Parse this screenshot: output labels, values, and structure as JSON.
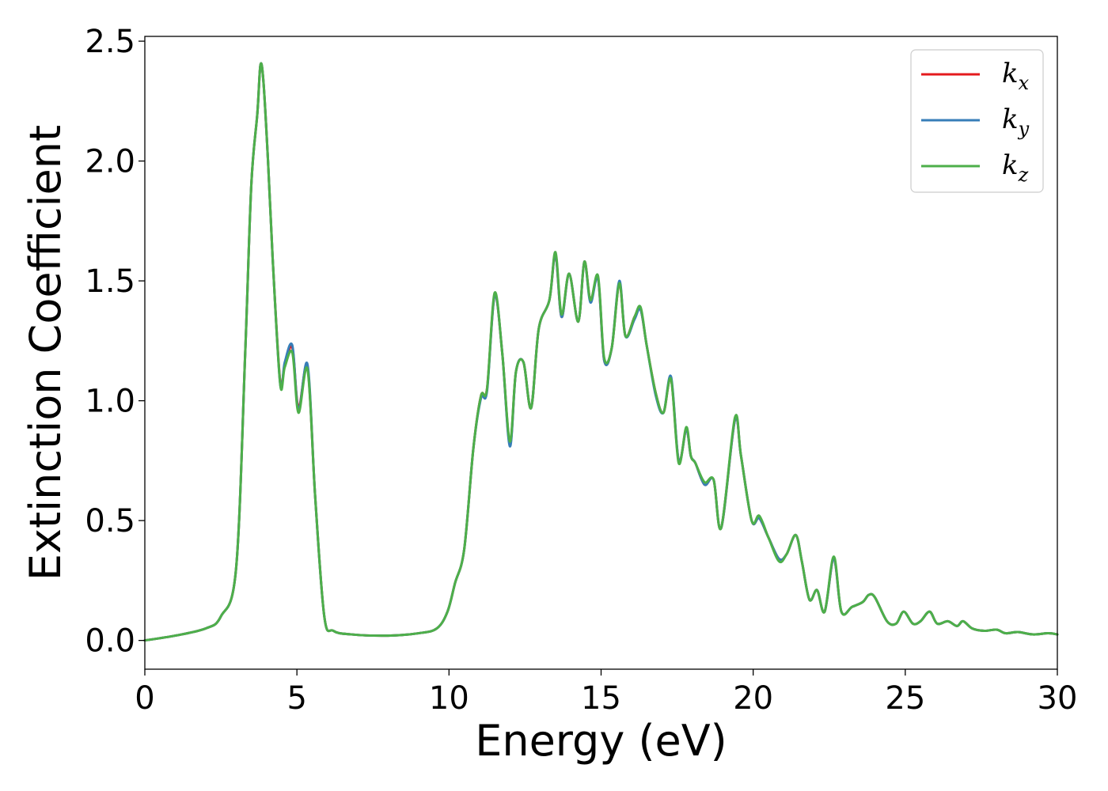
{
  "chart_data": {
    "type": "line",
    "title": "",
    "xlabel": "Energy (eV)",
    "ylabel": "Extinction Coefficient",
    "xlim": [
      0,
      30
    ],
    "ylim": [
      -0.12,
      2.52
    ],
    "xticks": [
      "0",
      "5",
      "10",
      "15",
      "20",
      "25",
      "30"
    ],
    "yticks": [
      "0.0",
      "0.5",
      "1.0",
      "1.5",
      "2.0",
      "2.5"
    ],
    "grid": false,
    "legend_position": "top-right",
    "series": [
      {
        "name": "k_x",
        "legend_main": "k",
        "legend_sub": "x",
        "color": "#e41a1c",
        "x": [
          0,
          1,
          2,
          2.5,
          3,
          3.3,
          3.5,
          3.7,
          3.8,
          3.9,
          4.05,
          4.2,
          4.45,
          4.6,
          4.85,
          5.05,
          5.35,
          5.6,
          5.9,
          6.2,
          6.8,
          8,
          9,
          9.6,
          9.95,
          10.2,
          10.5,
          10.8,
          11.05,
          11.25,
          11.5,
          11.75,
          12.0,
          12.2,
          12.45,
          12.7,
          12.95,
          13.3,
          13.5,
          13.7,
          13.95,
          14.25,
          14.45,
          14.65,
          14.9,
          15.1,
          15.35,
          15.6,
          15.8,
          16.1,
          16.3,
          16.5,
          16.8,
          17.05,
          17.3,
          17.55,
          17.8,
          17.95,
          18.1,
          18.4,
          18.7,
          18.95,
          19.4,
          19.6,
          19.95,
          20.2,
          20.5,
          20.85,
          21.1,
          21.4,
          21.6,
          21.85,
          22.1,
          22.35,
          22.65,
          22.9,
          23.25,
          23.6,
          23.8,
          24.0,
          24.4,
          24.7,
          24.95,
          25.25,
          25.5,
          25.8,
          26.05,
          26.4,
          26.7,
          26.9,
          27.2,
          27.6,
          28.0,
          28.3,
          28.7,
          29.2,
          29.7,
          30
        ],
        "y": [
          0.0,
          0.02,
          0.05,
          0.1,
          0.3,
          1.2,
          1.9,
          2.2,
          2.4,
          2.33,
          2.0,
          1.6,
          1.08,
          1.15,
          1.22,
          0.97,
          1.14,
          0.6,
          0.1,
          0.04,
          0.025,
          0.02,
          0.03,
          0.05,
          0.12,
          0.24,
          0.38,
          0.8,
          1.02,
          1.05,
          1.44,
          1.2,
          0.82,
          1.12,
          1.16,
          0.97,
          1.3,
          1.42,
          1.61,
          1.35,
          1.53,
          1.33,
          1.58,
          1.42,
          1.51,
          1.17,
          1.22,
          1.49,
          1.27,
          1.35,
          1.38,
          1.23,
          1.03,
          0.95,
          1.09,
          0.75,
          0.88,
          0.77,
          0.74,
          0.65,
          0.67,
          0.47,
          0.92,
          0.77,
          0.5,
          0.51,
          0.43,
          0.34,
          0.36,
          0.44,
          0.33,
          0.17,
          0.21,
          0.12,
          0.34,
          0.12,
          0.14,
          0.16,
          0.19,
          0.18,
          0.08,
          0.07,
          0.12,
          0.07,
          0.08,
          0.12,
          0.07,
          0.08,
          0.06,
          0.08,
          0.05,
          0.04,
          0.045,
          0.03,
          0.035,
          0.025,
          0.03,
          0.025
        ]
      },
      {
        "name": "k_y",
        "legend_main": "k",
        "legend_sub": "y",
        "color": "#377eb8",
        "x": [
          0,
          1,
          2,
          2.5,
          3,
          3.3,
          3.5,
          3.7,
          3.8,
          3.9,
          4.05,
          4.2,
          4.45,
          4.6,
          4.85,
          5.05,
          5.35,
          5.6,
          5.9,
          6.2,
          6.8,
          8,
          9,
          9.6,
          9.95,
          10.2,
          10.5,
          10.8,
          11.05,
          11.25,
          11.5,
          11.75,
          12.0,
          12.2,
          12.45,
          12.7,
          12.95,
          13.3,
          13.5,
          13.7,
          13.95,
          14.25,
          14.45,
          14.65,
          14.9,
          15.1,
          15.35,
          15.6,
          15.8,
          16.1,
          16.3,
          16.5,
          16.8,
          17.05,
          17.3,
          17.55,
          17.8,
          17.95,
          18.1,
          18.4,
          18.7,
          18.95,
          19.4,
          19.6,
          19.95,
          20.2,
          20.5,
          20.85,
          21.1,
          21.4,
          21.6,
          21.85,
          22.1,
          22.35,
          22.65,
          22.9,
          23.25,
          23.6,
          23.8,
          24.0,
          24.4,
          24.7,
          24.95,
          25.25,
          25.5,
          25.8,
          26.05,
          26.4,
          26.7,
          26.9,
          27.2,
          27.6,
          28.0,
          28.3,
          28.7,
          29.2,
          29.7,
          30
        ],
        "y": [
          0.0,
          0.02,
          0.05,
          0.1,
          0.3,
          1.2,
          1.9,
          2.2,
          2.4,
          2.33,
          2.0,
          1.6,
          1.07,
          1.16,
          1.23,
          0.96,
          1.15,
          0.6,
          0.1,
          0.04,
          0.025,
          0.02,
          0.03,
          0.05,
          0.12,
          0.24,
          0.38,
          0.8,
          1.01,
          1.04,
          1.44,
          1.2,
          0.81,
          1.12,
          1.16,
          0.97,
          1.3,
          1.42,
          1.61,
          1.35,
          1.53,
          1.33,
          1.58,
          1.41,
          1.51,
          1.17,
          1.22,
          1.5,
          1.27,
          1.34,
          1.38,
          1.23,
          1.02,
          0.95,
          1.1,
          0.75,
          0.88,
          0.77,
          0.74,
          0.65,
          0.67,
          0.47,
          0.92,
          0.77,
          0.5,
          0.51,
          0.43,
          0.34,
          0.36,
          0.44,
          0.33,
          0.17,
          0.21,
          0.12,
          0.34,
          0.12,
          0.14,
          0.16,
          0.19,
          0.18,
          0.08,
          0.07,
          0.12,
          0.07,
          0.08,
          0.12,
          0.07,
          0.08,
          0.06,
          0.08,
          0.05,
          0.04,
          0.045,
          0.03,
          0.035,
          0.025,
          0.03,
          0.025
        ]
      },
      {
        "name": "k_z",
        "legend_main": "k",
        "legend_sub": "z",
        "color": "#4daf4a",
        "x": [
          0,
          1,
          2,
          2.5,
          3,
          3.3,
          3.5,
          3.7,
          3.8,
          3.9,
          4.05,
          4.2,
          4.45,
          4.6,
          4.85,
          5.05,
          5.35,
          5.6,
          5.9,
          6.2,
          6.8,
          8,
          9,
          9.6,
          9.95,
          10.2,
          10.5,
          10.8,
          11.05,
          11.25,
          11.5,
          11.75,
          12.0,
          12.2,
          12.45,
          12.7,
          12.95,
          13.3,
          13.5,
          13.7,
          13.95,
          14.25,
          14.45,
          14.65,
          14.9,
          15.1,
          15.35,
          15.6,
          15.8,
          16.1,
          16.3,
          16.5,
          16.8,
          17.05,
          17.3,
          17.55,
          17.8,
          17.95,
          18.1,
          18.4,
          18.7,
          18.95,
          19.4,
          19.6,
          19.95,
          20.2,
          20.5,
          20.85,
          21.1,
          21.4,
          21.6,
          21.85,
          22.1,
          22.35,
          22.65,
          22.9,
          23.25,
          23.6,
          23.8,
          24.0,
          24.4,
          24.7,
          24.95,
          25.25,
          25.5,
          25.8,
          26.05,
          26.4,
          26.7,
          26.9,
          27.2,
          27.6,
          28.0,
          28.3,
          28.7,
          29.2,
          29.7,
          30
        ],
        "y": [
          0.0,
          0.02,
          0.05,
          0.1,
          0.3,
          1.2,
          1.9,
          2.2,
          2.4,
          2.33,
          2.0,
          1.6,
          1.07,
          1.14,
          1.2,
          0.95,
          1.13,
          0.6,
          0.1,
          0.04,
          0.025,
          0.02,
          0.03,
          0.05,
          0.12,
          0.24,
          0.38,
          0.8,
          1.02,
          1.05,
          1.45,
          1.2,
          0.83,
          1.12,
          1.16,
          0.97,
          1.3,
          1.42,
          1.62,
          1.36,
          1.53,
          1.33,
          1.58,
          1.42,
          1.52,
          1.18,
          1.22,
          1.49,
          1.27,
          1.35,
          1.39,
          1.23,
          1.03,
          0.95,
          1.09,
          0.74,
          0.89,
          0.77,
          0.74,
          0.66,
          0.67,
          0.47,
          0.93,
          0.77,
          0.5,
          0.52,
          0.43,
          0.33,
          0.36,
          0.44,
          0.33,
          0.17,
          0.21,
          0.12,
          0.35,
          0.12,
          0.14,
          0.16,
          0.19,
          0.18,
          0.08,
          0.07,
          0.12,
          0.07,
          0.08,
          0.12,
          0.07,
          0.08,
          0.06,
          0.08,
          0.05,
          0.04,
          0.045,
          0.03,
          0.035,
          0.025,
          0.03,
          0.025
        ]
      }
    ]
  }
}
